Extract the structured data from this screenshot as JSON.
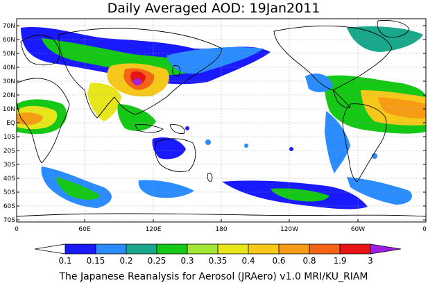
{
  "title": "Daily Averaged AOD: 19Jan2011",
  "footer": "The Japanese Reanalysis for Aerosol (JRAero) v1.0 MRI/KU_RIAM",
  "lat_labels": [
    "70N",
    "60N",
    "50N",
    "40N",
    "30N",
    "20N",
    "10N",
    "EQ",
    "10S",
    "20S",
    "30S",
    "40S",
    "50S",
    "60S",
    "70S"
  ],
  "lon_labels": [
    "0",
    "60E",
    "120E",
    "180",
    "120W",
    "60W",
    "0"
  ],
  "colorbar": {
    "labels": [
      "0.1",
      "0.15",
      "0.2",
      "0.25",
      "0.3",
      "0.35",
      "0.4",
      "0.6",
      "0.8",
      "1.9",
      "3"
    ],
    "colors": [
      "#ffffff",
      "#1a1aff",
      "#2a8cff",
      "#1aa88c",
      "#16c816",
      "#a0e632",
      "#e6e61a",
      "#f5c81a",
      "#f59b14",
      "#f56414",
      "#e61414",
      "#a01ee6"
    ]
  }
}
